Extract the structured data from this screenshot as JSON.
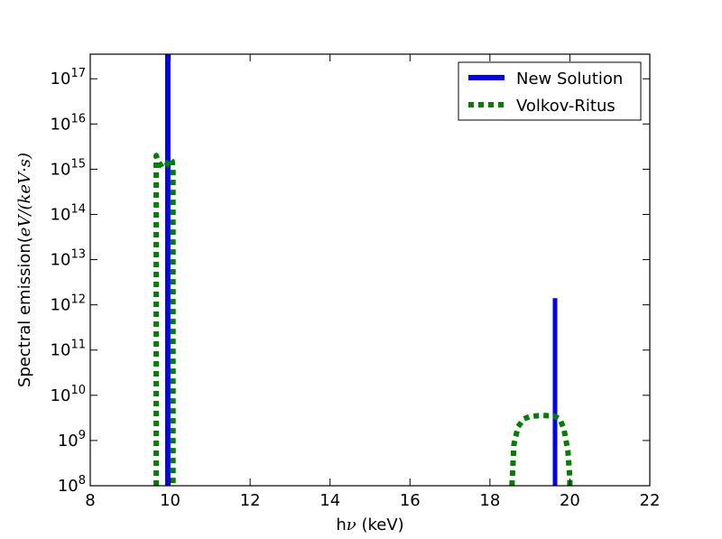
{
  "chart_data": {
    "type": "line",
    "title": "",
    "xlabel": {
      "prefix": "h",
      "symbol": "ν",
      "suffix": " (keV)"
    },
    "ylabel": {
      "prefix": "Spectral emission(",
      "math": "eV/(keV·s)",
      "suffix": ""
    },
    "xlim": [
      8,
      22
    ],
    "ylim": [
      100000000.0,
      3.5e+17
    ],
    "yscale": "log",
    "xticks": [
      8,
      10,
      12,
      14,
      16,
      18,
      20,
      22
    ],
    "yticks": [
      {
        "base": "10",
        "exp": "8",
        "value": 100000000.0
      },
      {
        "base": "10",
        "exp": "9",
        "value": 1000000000.0
      },
      {
        "base": "10",
        "exp": "10",
        "value": 10000000000.0
      },
      {
        "base": "10",
        "exp": "11",
        "value": 100000000000.0
      },
      {
        "base": "10",
        "exp": "12",
        "value": 1000000000000.0
      },
      {
        "base": "10",
        "exp": "13",
        "value": 10000000000000.0
      },
      {
        "base": "10",
        "exp": "14",
        "value": 100000000000000.0
      },
      {
        "base": "10",
        "exp": "15",
        "value": 1000000000000000.0
      },
      {
        "base": "10",
        "exp": "16",
        "value": 1e+16
      },
      {
        "base": "10",
        "exp": "17",
        "value": 1e+17
      }
    ],
    "grid": false,
    "legend_position": "top-right",
    "series": [
      {
        "name": "New Solution",
        "color": "#0000ff",
        "style": "solid",
        "segments": [
          {
            "x": [
              9.93,
              9.93
            ],
            "y": [
              100000000.0,
              3.5e+17
            ]
          },
          {
            "x": [
              9.95,
              9.95
            ],
            "y": [
              100000000.0,
              3.5e+17
            ]
          },
          {
            "x": [
              19.63,
              19.63
            ],
            "y": [
              100000000.0,
              1400000000000.0
            ]
          }
        ]
      },
      {
        "name": "Volkov-Ritus",
        "color": "#008000",
        "style": "dotted",
        "segments": [
          {
            "x": [
              9.65,
              9.65,
              9.7,
              9.8,
              9.9,
              10.0,
              10.05,
              10.07,
              10.07
            ],
            "y": [
              100000000.0,
              2000000000000000.0,
              1500000000000000.0,
              1100000000000000.0,
              1200000000000000.0,
              1700000000000000.0,
              1500000000000000.0,
              1000000000000000.0,
              100000000.0
            ]
          },
          {
            "x": [
              18.55,
              18.56,
              18.6,
              18.7,
              18.85,
              19.0,
              19.3,
              19.6,
              19.75,
              19.85,
              19.95,
              20.0,
              20.0
            ],
            "y": [
              100000000.0,
              150000000.0,
              800000000.0,
              2000000000.0,
              3000000000.0,
              3400000000.0,
              3600000000.0,
              3500000000.0,
              3000000000.0,
              1800000000.0,
              600000000.0,
              150000000.0,
              100000000.0
            ]
          }
        ]
      }
    ]
  }
}
